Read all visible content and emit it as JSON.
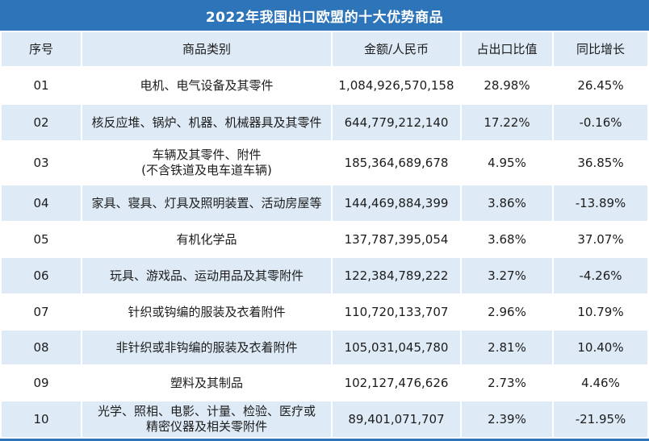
{
  "title": "2022年我国出口欧盟的十大优势商品",
  "colors": {
    "title_bar": "#2E74B8",
    "header_row_bg": "#DEEAF6",
    "zebra_row_bg": "#DEEAF6",
    "white_row_bg": "#FFFFFF",
    "title_text": "#FFFFFF",
    "cell_text": "#1C1C1C"
  },
  "chart_data": {
    "type": "table",
    "title": "2022年我国出口欧盟的十大优势商品",
    "columns": [
      "序号",
      "商品类别",
      "金额/人民币",
      "占出口比值",
      "同比增长"
    ],
    "rows": [
      [
        "01",
        "电机、电气设备及其零件",
        "1,084,926,570,158",
        "28.98%",
        "26.45%"
      ],
      [
        "02",
        "核反应堆、锅炉、机器、机械器具及其零件",
        "644,779,212,140",
        "17.22%",
        "-0.16%"
      ],
      [
        "03",
        "车辆及其零件、附件\n(不含铁道及电车道车辆)",
        "185,364,689,678",
        "4.95%",
        "36.85%"
      ],
      [
        "04",
        "家具、寝具、灯具及照明装置、活动房屋等",
        "144,469,884,399",
        "3.86%",
        "-13.89%"
      ],
      [
        "05",
        "有机化学品",
        "137,787,395,054",
        "3.68%",
        "37.07%"
      ],
      [
        "06",
        "玩具、游戏品、运动用品及其零附件",
        "122,384,789,222",
        "3.27%",
        "-4.26%"
      ],
      [
        "07",
        "针织或钩编的服装及衣着附件",
        "110,720,133,707",
        "2.96%",
        "10.79%"
      ],
      [
        "08",
        "非针织或非钩编的服装及衣着附件",
        "105,031,045,780",
        "2.81%",
        "10.40%"
      ],
      [
        "09",
        "塑料及其制品",
        "102,127,476,626",
        "2.73%",
        "4.46%"
      ],
      [
        "10",
        "光学、照相、电影、计量、检验、医疗或\n精密仪器及相关零附件",
        "89,401,071,707",
        "2.39%",
        "-21.95%"
      ]
    ]
  }
}
